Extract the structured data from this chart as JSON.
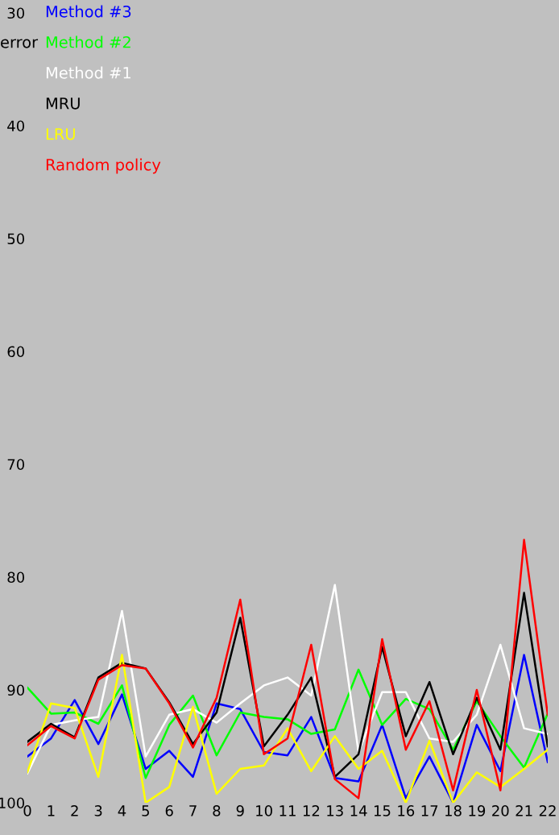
{
  "chart_data": {
    "type": "line",
    "ylabel": "error",
    "categories": [
      "0",
      "1",
      "2",
      "3",
      "4",
      "5",
      "6",
      "7",
      "8",
      "9",
      "10",
      "11",
      "12",
      "13",
      "14",
      "15",
      "16",
      "17",
      "18",
      "19",
      "20",
      "21",
      "22"
    ],
    "ylim": [
      100,
      30
    ],
    "yticks": [
      30,
      40,
      50,
      60,
      70,
      80,
      90,
      100
    ],
    "legend": "top left",
    "grid": false,
    "series": [
      {
        "name": "Method #3",
        "color": "#0000ff",
        "values": [
          95.9,
          94.3,
          90.9,
          94.8,
          90.4,
          97.0,
          95.4,
          97.7,
          91.2,
          91.7,
          95.5,
          95.8,
          92.4,
          97.8,
          98.1,
          93.1,
          99.6,
          95.9,
          100,
          93.1,
          97.2,
          86.9,
          96.4
        ]
      },
      {
        "name": "Method #2",
        "color": "#00ff00",
        "values": [
          89.8,
          92.1,
          92.0,
          93.0,
          89.6,
          97.8,
          93.1,
          90.5,
          95.8,
          92.0,
          92.4,
          92.6,
          93.9,
          93.5,
          88.2,
          93.1,
          90.8,
          91.7,
          95.3,
          91.0,
          94.1,
          96.9,
          92.1
        ]
      },
      {
        "name": "Method #1",
        "color": "#ffffff",
        "values": [
          97.4,
          93.1,
          92.7,
          92.4,
          83.0,
          95.9,
          92.2,
          91.7,
          92.9,
          91.2,
          89.6,
          88.9,
          90.5,
          80.7,
          95.5,
          90.2,
          90.2,
          94.3,
          94.6,
          92.2,
          86.0,
          93.4,
          93.9
        ]
      },
      {
        "name": "MRU",
        "color": "#000000",
        "values": [
          94.6,
          93.0,
          94.2,
          88.9,
          87.6,
          88.1,
          91.1,
          94.8,
          92.0,
          83.6,
          95.0,
          92.2,
          88.9,
          97.7,
          95.7,
          86.2,
          94.1,
          89.3,
          95.7,
          90.7,
          95.3,
          81.4,
          95.0
        ]
      },
      {
        "name": "LRU",
        "color": "#ffff00",
        "values": [
          97.3,
          91.2,
          91.6,
          97.7,
          86.9,
          100,
          98.6,
          91.5,
          99.2,
          97.0,
          96.7,
          93.4,
          97.2,
          94.1,
          97.0,
          95.4,
          100,
          94.5,
          100.0,
          97.3,
          98.6,
          97.0,
          95.3
        ]
      },
      {
        "name": "Random policy",
        "color": "#ff0000",
        "values": [
          94.9,
          93.2,
          94.3,
          89.1,
          87.8,
          88.1,
          91.2,
          95.1,
          90.7,
          82.0,
          95.7,
          94.3,
          86.0,
          97.9,
          99.6,
          85.5,
          95.3,
          91.0,
          98.9,
          90.0,
          98.9,
          76.7,
          92.2
        ]
      }
    ]
  }
}
